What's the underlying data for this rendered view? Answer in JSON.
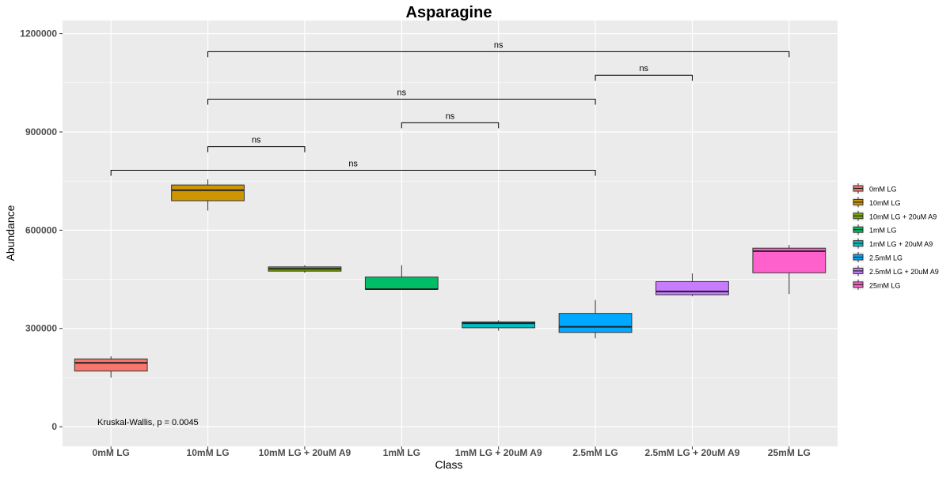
{
  "chart_data": {
    "type": "box",
    "title": "Asparagine",
    "xlabel": "Class",
    "ylabel": "Abundance",
    "ylim": [
      -60000,
      1240000
    ],
    "yticks": [
      0,
      300000,
      600000,
      900000,
      1200000
    ],
    "ytick_labels": [
      "0",
      "300000",
      "600000",
      "900000",
      "1200000"
    ],
    "grid": true,
    "legend_position": "right",
    "categories": [
      "0mM LG",
      "10mM LG",
      "10mM LG + 20uM A9",
      "1mM LG",
      "1mM LG + 20uM A9",
      "2.5mM LG",
      "2.5mM LG + 20uM A9",
      "25mM LG"
    ],
    "boxes": [
      {
        "category": "0mM LG",
        "color": "#F8766D",
        "min": 150000,
        "q1": 170000,
        "median": 195000,
        "q3": 207000,
        "max": 215000
      },
      {
        "category": "10mM LG",
        "color": "#CD9600",
        "min": 660000,
        "q1": 690000,
        "median": 722000,
        "q3": 738000,
        "max": 755000
      },
      {
        "category": "10mM LG + 20uM A9",
        "color": "#7CAE00",
        "min": 470000,
        "q1": 475000,
        "median": 482000,
        "q3": 488000,
        "max": 493000
      },
      {
        "category": "1mM LG",
        "color": "#00BE67",
        "min": 418000,
        "q1": 420000,
        "median": 420000,
        "q3": 457000,
        "max": 493000
      },
      {
        "category": "1mM LG + 20uM A9",
        "color": "#00BFC4",
        "min": 293000,
        "q1": 302000,
        "median": 316000,
        "q3": 320000,
        "max": 325000
      },
      {
        "category": "2.5mM LG",
        "color": "#00A9FF",
        "min": 270000,
        "q1": 288000,
        "median": 305000,
        "q3": 346000,
        "max": 387000
      },
      {
        "category": "2.5mM LG + 20uM A9",
        "color": "#C77CFF",
        "min": 398000,
        "q1": 403000,
        "median": 413000,
        "q3": 443000,
        "max": 468000
      },
      {
        "category": "25mM LG",
        "color": "#FF61CC",
        "min": 405000,
        "q1": 470000,
        "median": 536000,
        "q3": 545000,
        "max": 555000
      }
    ],
    "comparisons": [
      {
        "from": "0mM LG",
        "to": "2.5mM LG",
        "y": 783000,
        "label": "ns"
      },
      {
        "from": "10mM LG",
        "to": "10mM LG + 20uM A9",
        "y": 855000,
        "label": "ns"
      },
      {
        "from": "1mM LG",
        "to": "1mM LG + 20uM A9",
        "y": 928000,
        "label": "ns"
      },
      {
        "from": "10mM LG",
        "to": "2.5mM LG",
        "y": 1000000,
        "label": "ns"
      },
      {
        "from": "2.5mM LG",
        "to": "2.5mM LG + 20uM A9",
        "y": 1073000,
        "label": "ns"
      },
      {
        "from": "10mM LG",
        "to": "25mM LG",
        "y": 1145000,
        "label": "ns"
      }
    ],
    "annotation": "Kruskal-Wallis, p = 0.0045",
    "legend": [
      {
        "label": "0mM LG",
        "color": "#F8766D"
      },
      {
        "label": "10mM LG",
        "color": "#CD9600"
      },
      {
        "label": "10mM LG + 20uM A9",
        "color": "#7CAE00"
      },
      {
        "label": "1mM LG",
        "color": "#00BE67"
      },
      {
        "label": "1mM LG + 20uM A9",
        "color": "#00BFC4"
      },
      {
        "label": "2.5mM LG",
        "color": "#00A9FF"
      },
      {
        "label": "2.5mM LG + 20uM A9",
        "color": "#C77CFF"
      },
      {
        "label": "25mM LG",
        "color": "#FF61CC"
      }
    ]
  }
}
